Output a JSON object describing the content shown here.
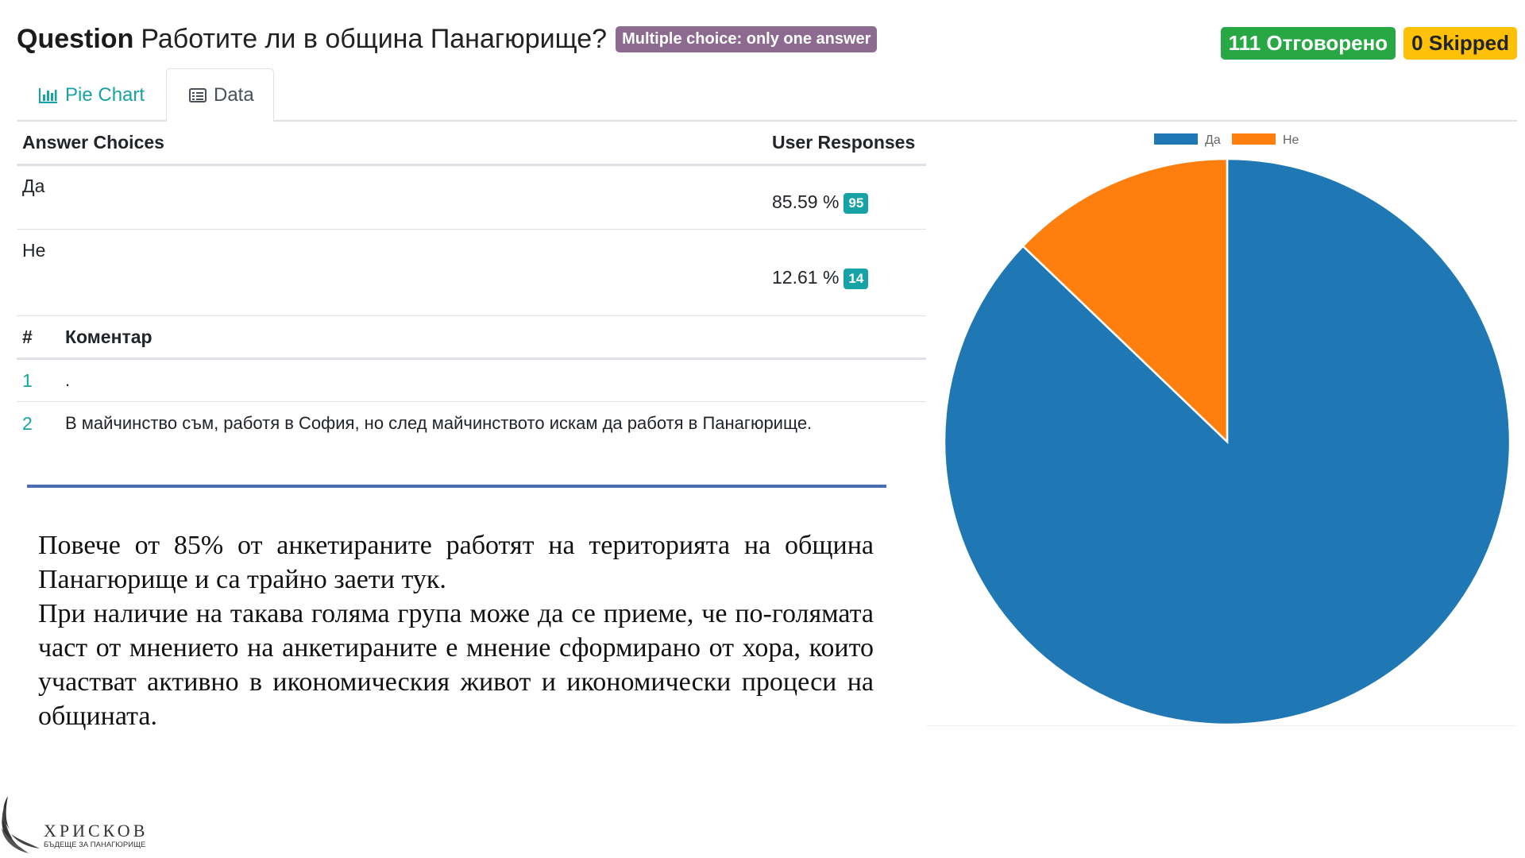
{
  "question": {
    "label": "Question",
    "text": "Работите ли в община Панагюрище?",
    "type_badge": "Multiple choice: only one answer"
  },
  "stats": {
    "answered": "111 Отговорено",
    "skipped": "0 Skipped"
  },
  "tabs": [
    {
      "label": "Pie Chart",
      "icon": "bar-chart-icon",
      "active": false
    },
    {
      "label": "Data",
      "icon": "list-icon",
      "active": true
    }
  ],
  "responses": {
    "headers": [
      "Answer Choices",
      "User Responses"
    ],
    "rows": [
      {
        "choice": "Да",
        "percent": "85.59 %",
        "count": "95"
      },
      {
        "choice": "Не",
        "percent": "12.61 %",
        "count": "14"
      }
    ]
  },
  "comments": {
    "headers": [
      "#",
      "Коментар"
    ],
    "rows": [
      {
        "n": "1",
        "text": "."
      },
      {
        "n": "2",
        "text": "В майчинство съм, работя в София, но след майчинството искам да работя в Панагюрище."
      }
    ]
  },
  "summary": {
    "paragraphs": [
      "Повече от 85% от анкетираните работят на територията на община Панагюрище и са трайно заети тук.",
      "При наличие на такава голяма група може да се приеме, че по-голямата част от мнението на анкетираните е мнение сформирано от хора, които участват активно в икономическия живот и икономически процеси на общината."
    ]
  },
  "logo": {
    "name": "ХРИСКОВ",
    "tagline": "БЪДЕЩЕ ЗА ПАНАГЮРИЩЕ"
  },
  "colors": {
    "type_badge": "#8d6a8f",
    "answered": "#28a745",
    "skipped": "#ffc107",
    "accent_teal": "#17a2a6",
    "divider": "#4a6fb1"
  },
  "chart_data": {
    "type": "pie",
    "categories": [
      "Да",
      "Не"
    ],
    "values": [
      95,
      14
    ],
    "colors": [
      "#1f77b4",
      "#ff7f0e"
    ],
    "legend": "top"
  }
}
